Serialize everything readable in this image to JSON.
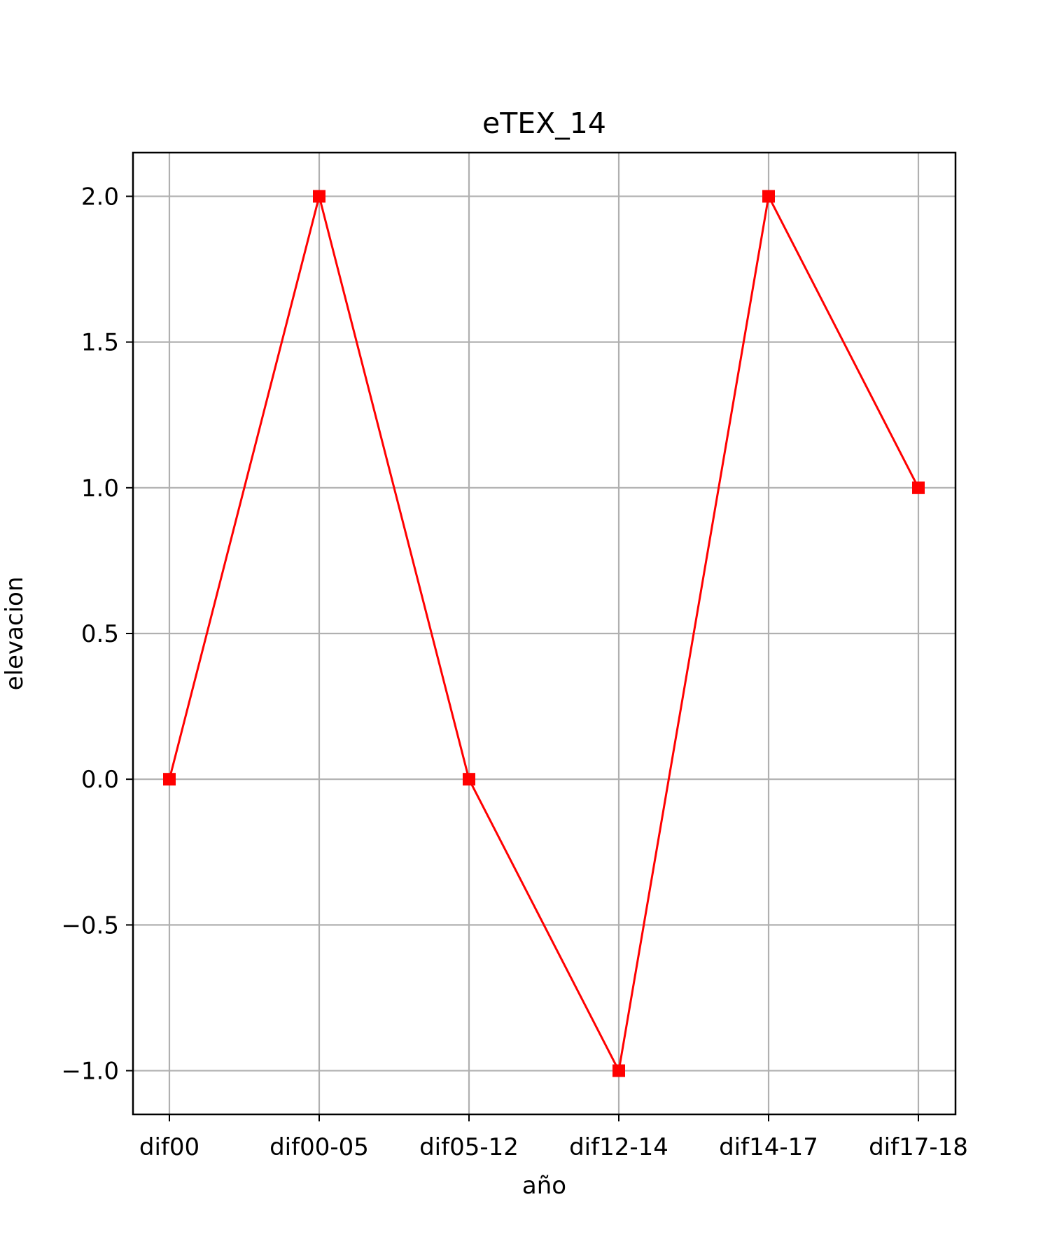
{
  "chart_data": {
    "type": "line",
    "title": "eTEX_14",
    "xlabel": "año",
    "ylabel": "elevacion",
    "categories": [
      "dif00",
      "dif00-05",
      "dif05-12",
      "dif12-14",
      "dif14-17",
      "dif17-18"
    ],
    "series": [
      {
        "values": [
          0,
          2,
          0,
          -1,
          2,
          1
        ],
        "color": "#ff0000",
        "marker": "square"
      }
    ],
    "ylim": [
      -1.15,
      2.15
    ],
    "yticks": [
      -1.0,
      -0.5,
      0.0,
      0.5,
      1.0,
      1.5,
      2.0
    ],
    "ytick_labels": [
      "−1.0",
      "−0.5",
      "0.0",
      "0.5",
      "1.0",
      "1.5",
      "2.0"
    ],
    "grid": true,
    "grid_color": "#b0b0b0",
    "axes_color": "#000000"
  }
}
